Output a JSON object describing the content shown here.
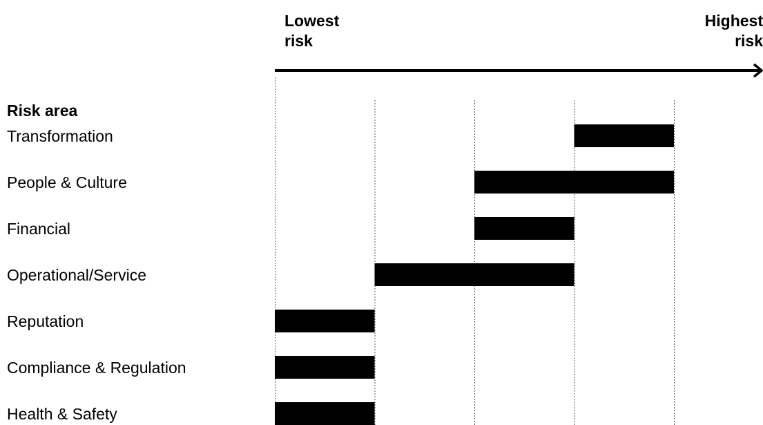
{
  "chart_data": {
    "type": "bar",
    "subtype": "range",
    "axis_title": "Risk area",
    "low_label": "Lowest\nrisk",
    "high_label": "Highest\nrisk",
    "x_range": [
      0,
      4
    ],
    "columns": 4,
    "grid": "dotted vertical lines",
    "categories": [
      "Transformation",
      "People & Culture",
      "Financial",
      "Operational/Service",
      "Reputation",
      "Compliance & Regulation",
      "Health & Safety"
    ],
    "ranges": [
      [
        3,
        4
      ],
      [
        2,
        4
      ],
      [
        2,
        3
      ],
      [
        1,
        3
      ],
      [
        0,
        1
      ],
      [
        0,
        1
      ],
      [
        0,
        1
      ]
    ],
    "bar_color": "#000000"
  }
}
